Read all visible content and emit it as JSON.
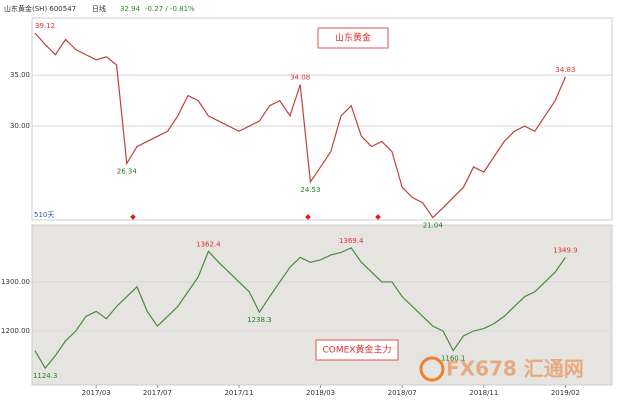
{
  "header": {
    "name": "山东黄金(SH) 600547",
    "period": "日线",
    "price": "32.94",
    "change": "-0.27 / -0.81%"
  },
  "footer_note": "510天",
  "watermark": "FX678 汇通网",
  "chart_data": [
    {
      "type": "line",
      "title": "山东黄金",
      "color": "#c0403a",
      "categories": [
        null,
        null,
        null,
        null,
        null,
        null,
        "2017/03",
        null,
        null,
        null,
        null,
        null,
        "2017/07",
        null,
        null,
        null,
        null,
        null,
        null,
        null,
        "2017/11",
        null,
        null,
        null,
        null,
        null,
        null,
        null,
        "2018/03",
        null,
        null,
        null,
        null,
        null,
        null,
        null,
        "2018/07",
        null,
        null,
        null,
        null,
        null,
        null,
        null,
        "2018/11",
        null,
        null,
        null,
        null,
        null,
        null,
        null,
        "2019/02"
      ],
      "values": [
        39.12,
        38,
        37,
        38.5,
        37.5,
        37,
        36.5,
        36.8,
        36,
        26.34,
        28,
        28.5,
        29,
        29.5,
        31,
        33,
        32.5,
        31,
        30.5,
        30,
        29.5,
        30,
        30.5,
        32,
        32.5,
        31,
        34.08,
        24.53,
        26,
        27.5,
        31,
        32,
        29,
        28,
        28.5,
        27.5,
        24,
        23,
        22.5,
        21.04,
        22,
        23,
        24,
        26,
        25.5,
        27,
        28.5,
        29.5,
        30,
        29.5,
        31,
        32.5,
        34.83
      ],
      "ylim": [
        20.8,
        40.6
      ],
      "yticks": [
        {
          "value": 30,
          "label": "30.00"
        },
        {
          "value": 35,
          "label": "35.00"
        }
      ]
    },
    {
      "type": "line",
      "title": "COMEX黄金主力",
      "color": "#4a8a3a",
      "categories": [
        null,
        null,
        null,
        null,
        null,
        null,
        "2017/03",
        null,
        null,
        null,
        null,
        null,
        "2017/07",
        null,
        null,
        null,
        null,
        null,
        null,
        null,
        "2017/11",
        null,
        null,
        null,
        null,
        null,
        null,
        null,
        "2018/03",
        null,
        null,
        null,
        null,
        null,
        null,
        null,
        "2018/07",
        null,
        null,
        null,
        null,
        null,
        null,
        null,
        "2018/11",
        null,
        null,
        null,
        null,
        null,
        null,
        null,
        "2019/02"
      ],
      "values": [
        1160,
        1124.3,
        1150,
        1180,
        1200,
        1230,
        1240,
        1225,
        1250,
        1270,
        1290,
        1240,
        1210,
        1230,
        1250,
        1280,
        1310,
        1362.4,
        1340,
        1320,
        1300,
        1280,
        1238.3,
        1270,
        1300,
        1330,
        1350,
        1340,
        1345,
        1355,
        1360,
        1369.4,
        1340,
        1320,
        1300,
        1300,
        1270,
        1250,
        1230,
        1210,
        1200,
        1160.1,
        1190,
        1200,
        1205,
        1215,
        1230,
        1250,
        1270,
        1280,
        1300,
        1320,
        1349.9
      ],
      "ylim": [
        1090,
        1416
      ],
      "yticks": [
        {
          "value": 1200,
          "label": "1200.00"
        },
        {
          "value": 1300,
          "label": "1300.00"
        }
      ]
    }
  ]
}
